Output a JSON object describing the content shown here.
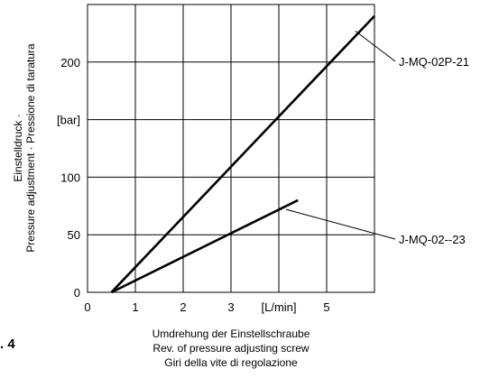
{
  "chart_data": {
    "type": "line",
    "x_tick_labels": [
      "0",
      "1",
      "2",
      "3",
      "[L/min]",
      "5"
    ],
    "y_tick_labels": [
      "0",
      "50",
      "100",
      "[bar]",
      "200"
    ],
    "x_ticks": [
      0,
      1,
      2,
      3,
      4,
      5
    ],
    "y_ticks": [
      0,
      50,
      100,
      150,
      200
    ],
    "xlim": [
      0,
      6
    ],
    "ylim": [
      0,
      250
    ],
    "grid": true,
    "xlabel": [
      "Umdrehung der Einstellschraube",
      "Rev. of pressure adjusting screw",
      "Giri della vite di regolazione"
    ],
    "ylabel": [
      "Einstelldruck ·",
      "Pressure adjustment · Pressione di taratura"
    ],
    "series": [
      {
        "name": "J-MQ-02P-21",
        "x": [
          0.5,
          6.0
        ],
        "y": [
          0,
          240
        ]
      },
      {
        "name": "J-MQ-02--23",
        "x": [
          0.5,
          4.4
        ],
        "y": [
          0,
          80
        ]
      }
    ],
    "figure_label": ". 4"
  }
}
